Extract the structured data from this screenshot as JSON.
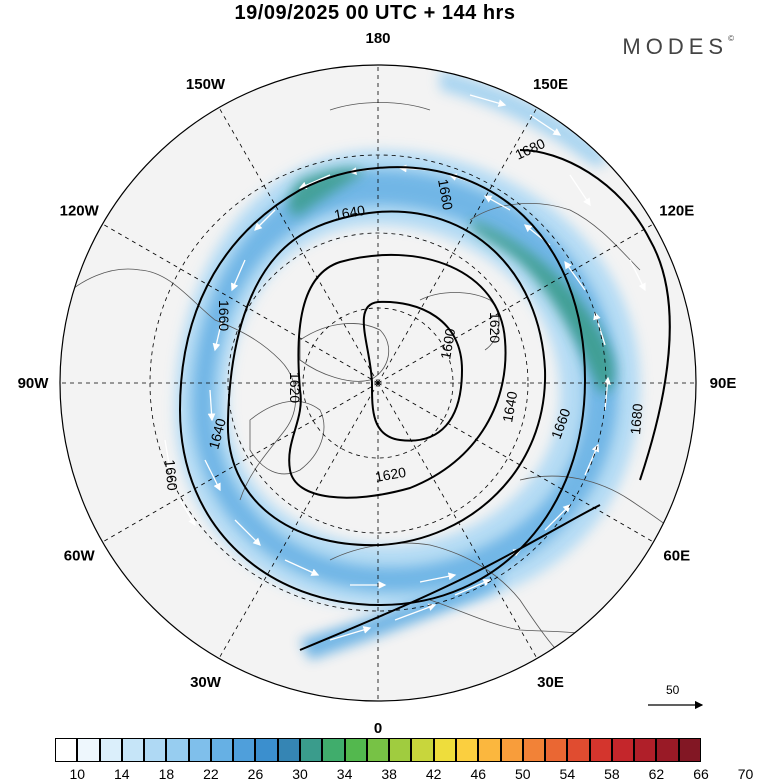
{
  "title": "19/09/2025  00 UTC  + 144 hrs",
  "logo": "MODES",
  "logo_mark": "©",
  "map": {
    "projection": "north-polar-stereographic",
    "longitude_labels": [
      {
        "id": "lon-180",
        "text": "180",
        "lon": 180
      },
      {
        "id": "lon-150e",
        "text": "150E",
        "lon": 150
      },
      {
        "id": "lon-120e",
        "text": "120E",
        "lon": 120
      },
      {
        "id": "lon-90e",
        "text": "90E",
        "lon": 90
      },
      {
        "id": "lon-60e",
        "text": "60E",
        "lon": 60
      },
      {
        "id": "lon-30e",
        "text": "30E",
        "lon": 30
      },
      {
        "id": "lon-0",
        "text": "0",
        "lon": 0
      },
      {
        "id": "lon-30w",
        "text": "30W",
        "lon": -30
      },
      {
        "id": "lon-60w",
        "text": "60W",
        "lon": -60
      },
      {
        "id": "lon-90w",
        "text": "90W",
        "lon": -90
      },
      {
        "id": "lon-120w",
        "text": "120W",
        "lon": -120
      },
      {
        "id": "lon-150w",
        "text": "150W",
        "lon": -150
      }
    ],
    "contour_labels": [
      "1600",
      "1620",
      "1620",
      "1620",
      "1640",
      "1640",
      "1640",
      "1660",
      "1660",
      "1660",
      "1660",
      "1680",
      "1680"
    ],
    "vector_reference": {
      "value": "50"
    }
  },
  "colorbar": {
    "labels": [
      "10",
      "14",
      "18",
      "22",
      "26",
      "30",
      "34",
      "38",
      "42",
      "46",
      "50",
      "54",
      "58",
      "62",
      "66",
      "70"
    ],
    "colors": [
      "#ffffff",
      "#eef7fd",
      "#dbeffb",
      "#c6e5f8",
      "#afd9f4",
      "#97cdf0",
      "#7fbfeb",
      "#66b0e4",
      "#4f9fdb",
      "#3b8fce",
      "#3585b4",
      "#3a9c8c",
      "#40ad6c",
      "#53b84e",
      "#77c245",
      "#a0cc3f",
      "#c8d63c",
      "#eedd3c",
      "#fbcf3f",
      "#fbb73e",
      "#f89d3b",
      "#f28237",
      "#ea6733",
      "#e04c30",
      "#d4352d",
      "#c4262b",
      "#b01f29",
      "#991a26",
      "#821724"
    ]
  }
}
